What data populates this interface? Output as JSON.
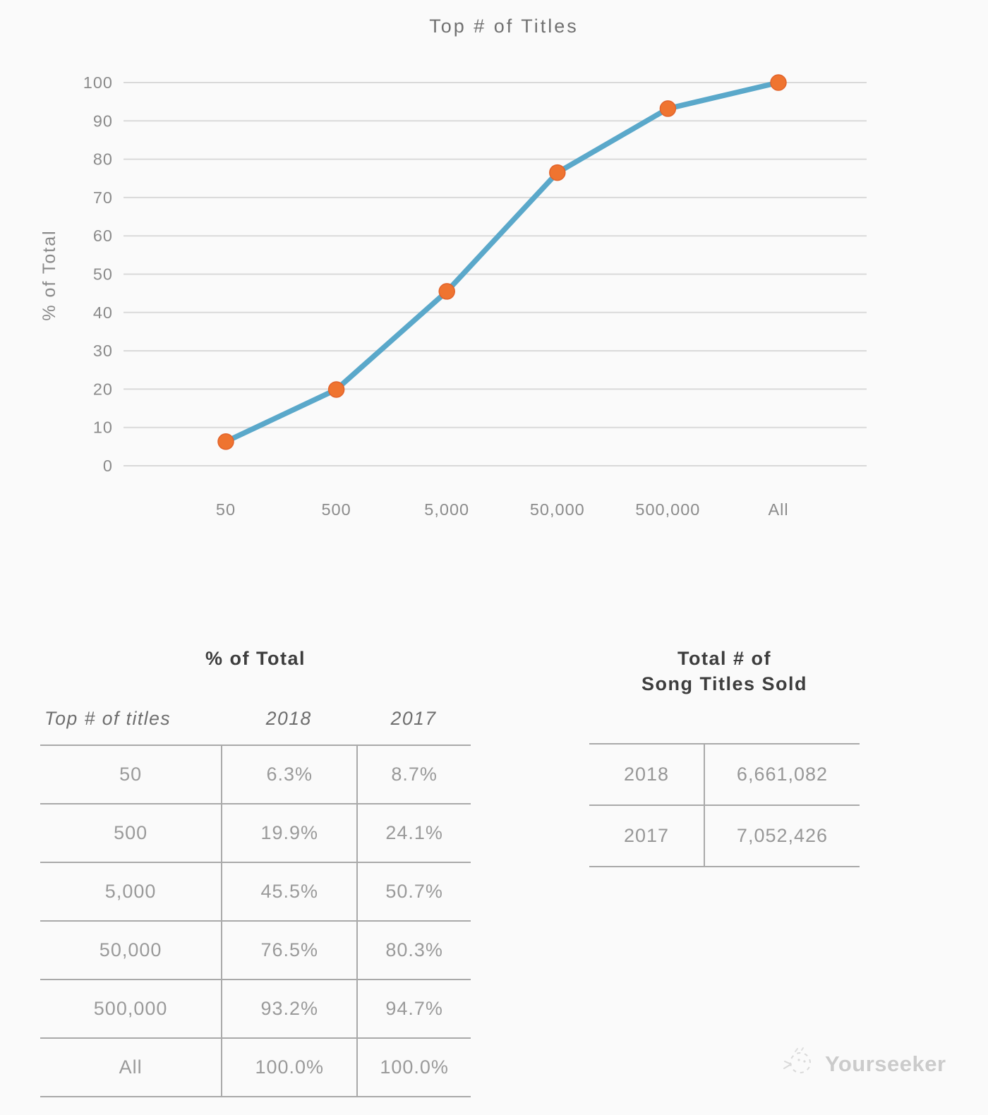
{
  "page": {
    "background": "#fafafa"
  },
  "chart_data": {
    "type": "line",
    "title": "Top # of Titles",
    "xlabel": "",
    "ylabel": "% of Total",
    "categories": [
      "50",
      "500",
      "5,000",
      "50,000",
      "500,000",
      "All"
    ],
    "series": [
      {
        "name": "2018",
        "values": [
          6.3,
          19.9,
          45.5,
          76.5,
          93.2,
          100.0
        ]
      }
    ],
    "ylim": [
      0,
      100
    ],
    "ytick_step": 10,
    "grid": "horizontal-only",
    "legend_position": "none",
    "line_color": "#5AA8CA",
    "marker_color": "#EF7430",
    "marker_edge_color": "#E2632B",
    "gridline_color": "#d9d9d9"
  },
  "percent_table": {
    "title": "% of Total",
    "columns": [
      "Top # of titles",
      "2018",
      "2017"
    ],
    "rows": [
      [
        "50",
        "6.3%",
        "8.7%"
      ],
      [
        "500",
        "19.9%",
        "24.1%"
      ],
      [
        "5,000",
        "45.5%",
        "50.7%"
      ],
      [
        "50,000",
        "76.5%",
        "80.3%"
      ],
      [
        "500,000",
        "93.2%",
        "94.7%"
      ],
      [
        "All",
        "100.0%",
        "100.0%"
      ]
    ]
  },
  "totals_table": {
    "title_line1": "Total # of",
    "title_line2": "Song Titles Sold",
    "rows": [
      [
        "2018",
        "6,661,082"
      ],
      [
        "2017",
        "7,052,426"
      ]
    ]
  },
  "watermark": {
    "label": "Yourseeker",
    "icon": "sketch-doodle-icon"
  }
}
